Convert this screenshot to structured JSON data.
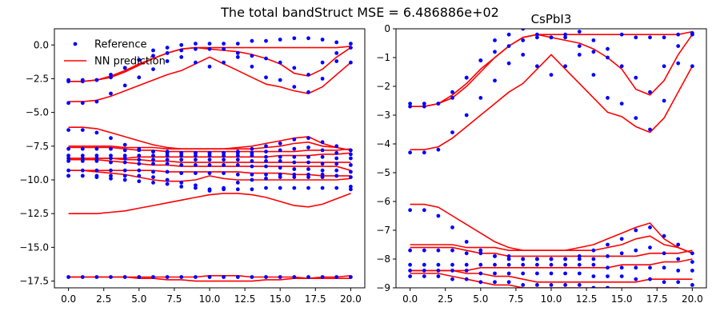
{
  "suptitle": "The total bandStruct MSE = 6.486886e+02",
  "colors": {
    "reference": "#0000ff",
    "prediction": "#ff0000",
    "axis": "#000000"
  },
  "chart_data": [
    {
      "type": "scatter",
      "title": "",
      "xlabel": "",
      "ylabel": "",
      "xlim": [
        -1,
        21
      ],
      "ylim": [
        -18,
        1.2
      ],
      "xticks": [
        0.0,
        2.5,
        5.0,
        7.5,
        10.0,
        12.5,
        15.0,
        17.5,
        20.0
      ],
      "xtick_labels": [
        "0.0",
        "2.5",
        "5.0",
        "7.5",
        "10.0",
        "12.5",
        "15.0",
        "17.5",
        "20.0"
      ],
      "yticks": [
        0.0,
        -2.5,
        -5.0,
        -7.5,
        -10.0,
        -12.5,
        -15.0,
        -17.5
      ],
      "ytick_labels": [
        "0.0",
        "−2.5",
        "−5.0",
        "−7.5",
        "−10.0",
        "−12.5",
        "−15.0",
        "−17.5"
      ],
      "legend": {
        "placement": "upper-left",
        "entries": [
          {
            "label": "Reference",
            "marker": "dot",
            "color": "#0000ff"
          },
          {
            "label": "NN prediction",
            "marker": "line",
            "color": "#ff0000"
          }
        ]
      },
      "x": [
        0,
        1,
        2,
        3,
        4,
        5,
        6,
        7,
        8,
        9,
        10,
        11,
        12,
        13,
        14,
        15,
        16,
        17,
        18,
        19,
        20
      ],
      "reference_bands": [
        [
          -17.2,
          -17.2,
          -17.2,
          -17.2,
          -17.2,
          -17.2,
          -17.2,
          -17.2,
          -17.2,
          -17.2,
          -17.2,
          -17.2,
          -17.2,
          -17.2,
          -17.2,
          -17.2,
          -17.2,
          -17.2,
          -17.2,
          -17.2,
          -17.2
        ],
        [
          -9.7,
          -9.7,
          -9.8,
          -9.9,
          -10.0,
          -10.1,
          -10.2,
          -10.3,
          -10.5,
          -10.6,
          -10.7,
          -10.7,
          -10.7,
          -10.7,
          -10.6,
          -10.6,
          -10.6,
          -10.6,
          -10.6,
          -10.6,
          -10.5
        ],
        [
          -9.7,
          -9.7,
          -9.7,
          -9.7,
          -9.7,
          -9.7,
          -9.8,
          -10.0,
          -10.2,
          -10.4,
          -10.8,
          -10.6,
          -10.2,
          -10.0,
          -9.9,
          -9.8,
          -9.8,
          -9.8,
          -9.8,
          -9.7,
          -10.7
        ],
        [
          -9.3,
          -9.3,
          -9.3,
          -9.3,
          -9.3,
          -9.3,
          -9.4,
          -9.4,
          -9.5,
          -9.5,
          -9.5,
          -9.5,
          -9.6,
          -9.6,
          -9.6,
          -9.6,
          -9.6,
          -9.6,
          -9.6,
          -9.7,
          -9.8
        ],
        [
          -8.6,
          -8.6,
          -8.6,
          -8.7,
          -8.7,
          -8.8,
          -8.8,
          -8.8,
          -8.9,
          -8.9,
          -8.9,
          -8.9,
          -8.9,
          -9.0,
          -9.0,
          -9.1,
          -9.2,
          -9.2,
          -9.3,
          -9.3,
          -9.4
        ],
        [
          -8.4,
          -8.4,
          -8.4,
          -8.4,
          -8.4,
          -8.5,
          -8.5,
          -8.5,
          -8.5,
          -8.5,
          -8.5,
          -8.5,
          -8.5,
          -8.6,
          -8.6,
          -8.6,
          -8.7,
          -8.7,
          -8.8,
          -8.8,
          -8.9
        ],
        [
          -8.2,
          -8.2,
          -8.2,
          -8.2,
          -8.2,
          -8.2,
          -8.2,
          -8.2,
          -8.2,
          -8.2,
          -8.2,
          -8.2,
          -8.2,
          -8.2,
          -8.3,
          -8.3,
          -8.3,
          -8.3,
          -8.3,
          -8.4,
          -8.4
        ],
        [
          -7.7,
          -7.7,
          -7.7,
          -7.7,
          -7.8,
          -7.8,
          -7.9,
          -7.9,
          -8.0,
          -8.0,
          -8.0,
          -8.0,
          -8.0,
          -8.0,
          -7.9,
          -7.8,
          -7.7,
          -7.6,
          -7.8,
          -8.0,
          -8.1
        ],
        [
          -6.3,
          -6.3,
          -6.5,
          -6.9,
          -7.4,
          -7.7,
          -7.9,
          -8.0,
          -8.0,
          -8.0,
          -8.0,
          -8.0,
          -7.9,
          -7.7,
          -7.5,
          -7.3,
          -7.0,
          -6.9,
          -7.2,
          -7.5,
          -7.8
        ],
        [
          -4.3,
          -4.3,
          -4.2,
          -3.6,
          -3.0,
          -2.4,
          -1.8,
          -1.2,
          -0.9,
          -1.3,
          -1.6,
          -1.3,
          -0.9,
          -1.6,
          -2.4,
          -2.6,
          -3.1,
          -3.5,
          -2.5,
          -1.2,
          -1.3
        ],
        [
          -2.7,
          -2.7,
          -2.6,
          -2.2,
          -1.7,
          -1.1,
          -0.8,
          -0.6,
          -0.4,
          -0.3,
          -0.3,
          -0.3,
          -0.6,
          -0.8,
          -1.0,
          -1.3,
          -1.7,
          -2.2,
          -1.3,
          -0.6,
          -0.2
        ],
        [
          -2.6,
          -2.6,
          -2.6,
          -2.4,
          -1.7,
          -1.1,
          -0.4,
          -0.2,
          0.0,
          0.1,
          0.1,
          0.1,
          0.1,
          0.3,
          0.3,
          0.4,
          0.5,
          0.5,
          0.4,
          0.2,
          0.1
        ]
      ],
      "prediction_bands": [
        [
          -17.2,
          -17.2,
          -17.2,
          -17.2,
          -17.2,
          -17.2,
          -17.2,
          -17.2,
          -17.2,
          -17.2,
          -17.1,
          -17.1,
          -17.1,
          -17.2,
          -17.2,
          -17.2,
          -17.2,
          -17.3,
          -17.3,
          -17.3,
          -17.3
        ],
        [
          -17.2,
          -17.2,
          -17.2,
          -17.2,
          -17.2,
          -17.3,
          -17.3,
          -17.4,
          -17.4,
          -17.5,
          -17.5,
          -17.5,
          -17.5,
          -17.5,
          -17.4,
          -17.4,
          -17.3,
          -17.3,
          -17.2,
          -17.2,
          -17.1
        ],
        [
          -12.5,
          -12.5,
          -12.5,
          -12.4,
          -12.3,
          -12.1,
          -11.9,
          -11.7,
          -11.5,
          -11.3,
          -11.1,
          -11.0,
          -11.0,
          -11.1,
          -11.3,
          -11.6,
          -11.9,
          -12.0,
          -11.8,
          -11.4,
          -11.0
        ],
        [
          -9.3,
          -9.3,
          -9.4,
          -9.5,
          -9.6,
          -9.8,
          -10.0,
          -10.1,
          -10.1,
          -10.0,
          -9.7,
          -9.9,
          -10.0,
          -10.0,
          -10.0,
          -10.0,
          -10.0,
          -10.0,
          -10.0,
          -10.0,
          -9.9
        ],
        [
          -9.3,
          -9.3,
          -9.3,
          -9.3,
          -9.3,
          -9.3,
          -9.3,
          -9.4,
          -9.4,
          -9.4,
          -9.4,
          -9.4,
          -9.4,
          -9.5,
          -9.5,
          -9.5,
          -9.6,
          -9.6,
          -9.7,
          -9.7,
          -9.7
        ],
        [
          -8.5,
          -8.5,
          -8.5,
          -8.6,
          -8.7,
          -8.8,
          -8.9,
          -8.9,
          -9.0,
          -9.0,
          -9.0,
          -9.0,
          -9.0,
          -9.0,
          -9.0,
          -9.0,
          -9.0,
          -9.0,
          -9.0,
          -9.0,
          -9.3
        ],
        [
          -8.4,
          -8.4,
          -8.4,
          -8.4,
          -8.5,
          -8.5,
          -8.6,
          -8.6,
          -8.7,
          -8.7,
          -8.7,
          -8.7,
          -8.7,
          -8.7,
          -8.7,
          -8.7,
          -8.7,
          -8.7,
          -8.7,
          -8.7,
          -8.7
        ],
        [
          -8.4,
          -8.4,
          -8.4,
          -8.4,
          -8.4,
          -8.3,
          -8.3,
          -8.3,
          -8.3,
          -8.3,
          -8.3,
          -8.3,
          -8.3,
          -8.3,
          -8.3,
          -8.2,
          -8.2,
          -8.2,
          -8.1,
          -8.1,
          -8.0
        ],
        [
          -7.6,
          -7.6,
          -7.6,
          -7.6,
          -7.7,
          -7.8,
          -7.8,
          -7.9,
          -7.9,
          -7.9,
          -7.9,
          -7.9,
          -7.9,
          -7.9,
          -7.9,
          -7.9,
          -7.9,
          -7.8,
          -7.8,
          -7.8,
          -7.7
        ],
        [
          -7.5,
          -7.5,
          -7.5,
          -7.5,
          -7.6,
          -7.6,
          -7.6,
          -7.7,
          -7.7,
          -7.7,
          -7.7,
          -7.7,
          -7.7,
          -7.7,
          -7.6,
          -7.5,
          -7.3,
          -7.2,
          -7.5,
          -7.6,
          -7.8
        ],
        [
          -6.1,
          -6.1,
          -6.2,
          -6.5,
          -6.8,
          -7.1,
          -7.4,
          -7.6,
          -7.7,
          -7.7,
          -7.7,
          -7.7,
          -7.6,
          -7.5,
          -7.3,
          -7.1,
          -6.9,
          -6.8,
          -7.3,
          -7.6,
          -7.8
        ],
        [
          -4.2,
          -4.2,
          -4.1,
          -3.8,
          -3.4,
          -3.0,
          -2.6,
          -2.2,
          -1.9,
          -1.4,
          -0.9,
          -1.4,
          -1.9,
          -2.4,
          -2.9,
          -3.1,
          -3.4,
          -3.6,
          -3.1,
          -2.2,
          -1.3
        ],
        [
          -2.7,
          -2.7,
          -2.6,
          -2.3,
          -1.9,
          -1.4,
          -1.0,
          -0.6,
          -0.3,
          -0.2,
          -0.3,
          -0.4,
          -0.5,
          -0.7,
          -1.0,
          -1.4,
          -2.1,
          -2.3,
          -1.8,
          -0.9,
          -0.2
        ],
        [
          -2.7,
          -2.7,
          -2.6,
          -2.4,
          -2.0,
          -1.5,
          -1.0,
          -0.6,
          -0.3,
          -0.2,
          -0.2,
          -0.2,
          -0.2,
          -0.2,
          -0.2,
          -0.2,
          -0.2,
          -0.2,
          -0.2,
          -0.2,
          -0.1
        ]
      ]
    },
    {
      "type": "scatter",
      "title": "CsPbI3",
      "xlabel": "",
      "ylabel": "",
      "xlim": [
        -1,
        21
      ],
      "ylim": [
        -9,
        0
      ],
      "xticks": [
        0.0,
        2.5,
        5.0,
        7.5,
        10.0,
        12.5,
        15.0,
        17.5,
        20.0
      ],
      "xtick_labels": [
        "0.0",
        "2.5",
        "5.0",
        "7.5",
        "10.0",
        "12.5",
        "15.0",
        "17.5",
        "20.0"
      ],
      "yticks": [
        0,
        -1,
        -2,
        -3,
        -4,
        -5,
        -6,
        -7,
        -8,
        -9
      ],
      "ytick_labels": [
        "0",
        "−1",
        "−2",
        "−3",
        "−4",
        "−5",
        "−6",
        "−7",
        "−8",
        "−9"
      ],
      "x": [
        0,
        1,
        2,
        3,
        4,
        5,
        6,
        7,
        8,
        9,
        10,
        11,
        12,
        13,
        14,
        15,
        16,
        17,
        18,
        19,
        20
      ],
      "reference_bands": [
        [
          -8.6,
          -8.6,
          -8.6,
          -8.7,
          -8.7,
          -8.8,
          -8.8,
          -8.8,
          -8.9,
          -8.9,
          -8.9,
          -8.9,
          -8.9,
          -9.0,
          -9.0,
          -9.1,
          -9.2,
          -9.2,
          -9.3,
          -9.3,
          -9.4
        ],
        [
          -8.4,
          -8.4,
          -8.4,
          -8.4,
          -8.4,
          -8.5,
          -8.5,
          -8.5,
          -8.5,
          -8.5,
          -8.5,
          -8.5,
          -8.5,
          -8.6,
          -8.6,
          -8.6,
          -8.7,
          -8.7,
          -8.8,
          -8.8,
          -8.9
        ],
        [
          -8.2,
          -8.2,
          -8.2,
          -8.2,
          -8.2,
          -8.2,
          -8.2,
          -8.2,
          -8.2,
          -8.2,
          -8.2,
          -8.2,
          -8.2,
          -8.2,
          -8.3,
          -8.3,
          -8.3,
          -8.3,
          -8.3,
          -8.4,
          -8.4
        ],
        [
          -7.7,
          -7.7,
          -7.7,
          -7.7,
          -7.8,
          -7.8,
          -7.9,
          -7.9,
          -8.0,
          -8.0,
          -8.0,
          -8.0,
          -8.0,
          -8.0,
          -7.9,
          -7.8,
          -7.7,
          -7.6,
          -7.8,
          -8.0,
          -8.1
        ],
        [
          -6.3,
          -6.3,
          -6.5,
          -6.9,
          -7.4,
          -7.7,
          -7.9,
          -8.0,
          -8.0,
          -8.0,
          -8.0,
          -8.0,
          -7.9,
          -7.7,
          -7.5,
          -7.3,
          -7.0,
          -6.9,
          -7.2,
          -7.5,
          -7.8
        ],
        [
          -4.3,
          -4.3,
          -4.2,
          -3.6,
          -3.0,
          -2.4,
          -1.8,
          -1.2,
          -0.9,
          -1.3,
          -1.6,
          -1.3,
          -0.9,
          -1.6,
          -2.4,
          -2.6,
          -3.1,
          -3.5,
          -2.5,
          -1.2,
          -1.3
        ],
        [
          -2.7,
          -2.7,
          -2.6,
          -2.2,
          -1.7,
          -1.1,
          -0.8,
          -0.6,
          -0.4,
          -0.3,
          -0.3,
          -0.3,
          -0.6,
          -0.8,
          -1.0,
          -1.3,
          -1.7,
          -2.2,
          -1.3,
          -0.6,
          -0.2
        ],
        [
          -2.6,
          -2.6,
          -2.6,
          -2.4,
          -1.7,
          -1.1,
          -0.4,
          -0.2,
          0.0,
          -0.2,
          -0.3,
          -0.2,
          -0.1,
          -0.4,
          -0.7,
          -0.2,
          -0.3,
          -0.3,
          -0.3,
          -0.2,
          -0.15
        ]
      ],
      "prediction_bands": [
        [
          -8.5,
          -8.5,
          -8.5,
          -8.6,
          -8.7,
          -8.8,
          -8.9,
          -8.9,
          -9.0,
          -9.0,
          -9.0,
          -9.0,
          -9.0,
          -9.0,
          -9.0,
          -9.0,
          -9.0,
          -9.0,
          -9.0,
          -9.0,
          -9.3
        ],
        [
          -8.4,
          -8.4,
          -8.4,
          -8.4,
          -8.5,
          -8.5,
          -8.6,
          -8.6,
          -8.7,
          -8.8,
          -8.8,
          -8.8,
          -8.8,
          -8.8,
          -8.8,
          -8.8,
          -8.8,
          -8.7,
          -8.7,
          -8.7,
          -8.7
        ],
        [
          -8.4,
          -8.4,
          -8.4,
          -8.4,
          -8.4,
          -8.3,
          -8.3,
          -8.3,
          -8.3,
          -8.3,
          -8.3,
          -8.3,
          -8.3,
          -8.3,
          -8.3,
          -8.2,
          -8.2,
          -8.2,
          -8.1,
          -8.1,
          -8.0
        ],
        [
          -7.6,
          -7.6,
          -7.6,
          -7.6,
          -7.7,
          -7.8,
          -7.8,
          -7.9,
          -7.9,
          -7.9,
          -7.9,
          -7.9,
          -7.9,
          -7.9,
          -7.9,
          -7.9,
          -7.9,
          -7.8,
          -7.8,
          -7.8,
          -7.7
        ],
        [
          -7.5,
          -7.5,
          -7.5,
          -7.5,
          -7.6,
          -7.6,
          -7.6,
          -7.7,
          -7.7,
          -7.7,
          -7.7,
          -7.7,
          -7.7,
          -7.7,
          -7.6,
          -7.5,
          -7.3,
          -7.2,
          -7.5,
          -7.6,
          -7.8
        ],
        [
          -6.1,
          -6.1,
          -6.2,
          -6.5,
          -6.8,
          -7.1,
          -7.4,
          -7.6,
          -7.7,
          -7.7,
          -7.7,
          -7.7,
          -7.6,
          -7.5,
          -7.3,
          -7.1,
          -6.9,
          -6.75,
          -7.3,
          -7.6,
          -7.8
        ],
        [
          -4.2,
          -4.2,
          -4.1,
          -3.8,
          -3.4,
          -3.0,
          -2.6,
          -2.2,
          -1.9,
          -1.4,
          -0.9,
          -1.4,
          -1.9,
          -2.4,
          -2.9,
          -3.05,
          -3.4,
          -3.6,
          -3.1,
          -2.2,
          -1.3
        ],
        [
          -2.7,
          -2.7,
          -2.6,
          -2.3,
          -1.9,
          -1.4,
          -1.0,
          -0.6,
          -0.3,
          -0.2,
          -0.3,
          -0.4,
          -0.5,
          -0.7,
          -1.0,
          -1.4,
          -2.1,
          -2.3,
          -1.8,
          -0.9,
          -0.2
        ],
        [
          -2.7,
          -2.7,
          -2.6,
          -2.4,
          -2.0,
          -1.5,
          -1.0,
          -0.6,
          -0.3,
          -0.2,
          -0.2,
          -0.2,
          -0.2,
          -0.2,
          -0.2,
          -0.2,
          -0.2,
          -0.2,
          -0.2,
          -0.2,
          -0.1
        ]
      ]
    }
  ]
}
